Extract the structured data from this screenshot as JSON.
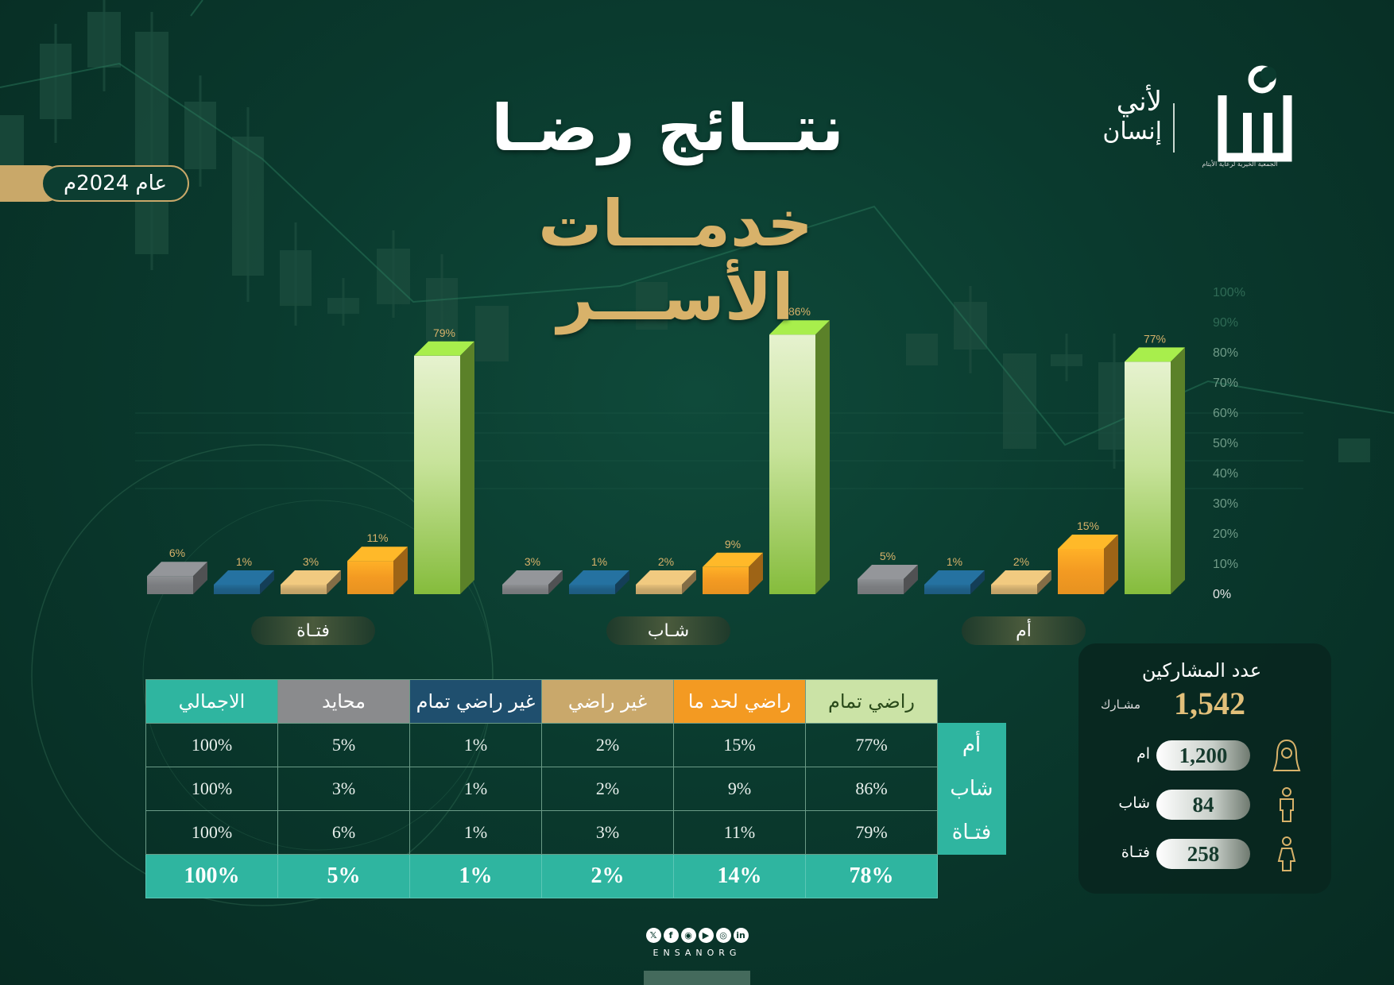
{
  "header": {
    "title_line1": "نتــائج رضـا",
    "title_line2": "خدمـــات الأســـر",
    "year": "عام 2024م"
  },
  "logo": {
    "line1": "لأني",
    "line2": "إنسان",
    "mark": "انسان",
    "subtitle": "الجمعية الخيرية لرعاية الأيتام"
  },
  "chart_data": {
    "type": "bar",
    "categories": [
      "فتـاة",
      "شـاب",
      "أم"
    ],
    "series": [
      {
        "name": "محايد",
        "color": "#7b7d80",
        "values": [
          6,
          3,
          5
        ]
      },
      {
        "name": "غير راضي تمام",
        "color": "#1f5f86",
        "values": [
          1,
          1,
          1
        ]
      },
      {
        "name": "غير راضي",
        "color": "#c9a86b",
        "values": [
          3,
          2,
          2
        ]
      },
      {
        "name": "راضي لحد ما",
        "color": "#f39a22",
        "values": [
          11,
          9,
          15
        ]
      },
      {
        "name": "راضي تمام",
        "color": "#8cc63f",
        "values": [
          79,
          86,
          77
        ]
      }
    ],
    "y_ticks": [
      "0%",
      "10%",
      "20%",
      "30%",
      "40%",
      "50%",
      "60%",
      "70%",
      "80%",
      "90%",
      "100%"
    ],
    "ylim": [
      0,
      100
    ],
    "value_suffix": "%"
  },
  "table": {
    "headers": [
      {
        "label": "الاجمالي",
        "color": "#2fb5a0"
      },
      {
        "label": "محايد",
        "color": "#8a8b8d"
      },
      {
        "label": "غير راضي تمام",
        "color": "#1f4f6e"
      },
      {
        "label": "غير راضي",
        "color": "#c9a86b"
      },
      {
        "label": "راضي لحد ما",
        "color": "#f39a22"
      },
      {
        "label": "راضي تمام",
        "color": "#cbe3a6"
      }
    ],
    "rows": [
      {
        "label": "أم",
        "cells": [
          "100%",
          "5%",
          "1%",
          "2%",
          "15%",
          "77%"
        ]
      },
      {
        "label": "شاب",
        "cells": [
          "100%",
          "3%",
          "1%",
          "2%",
          "9%",
          "86%"
        ]
      },
      {
        "label": "فتـاة",
        "cells": [
          "100%",
          "6%",
          "1%",
          "3%",
          "11%",
          "79%"
        ]
      }
    ],
    "totals": [
      "100%",
      "5%",
      "1%",
      "2%",
      "14%",
      "78%"
    ]
  },
  "participants": {
    "title": "عدد المشاركين",
    "total": "1,542",
    "unit": "مشـارك",
    "groups": [
      {
        "label": "ام",
        "value": "1,200",
        "icon": "mother-icon"
      },
      {
        "label": "شاب",
        "value": "84",
        "icon": "young-man-icon"
      },
      {
        "label": "فتـاة",
        "value": "258",
        "icon": "girl-icon"
      }
    ]
  },
  "footer": {
    "handle": "ENSANORG",
    "social_icons": [
      "x-icon",
      "facebook-icon",
      "snapchat-icon",
      "youtube-icon",
      "instagram-icon",
      "linkedin-icon"
    ]
  }
}
